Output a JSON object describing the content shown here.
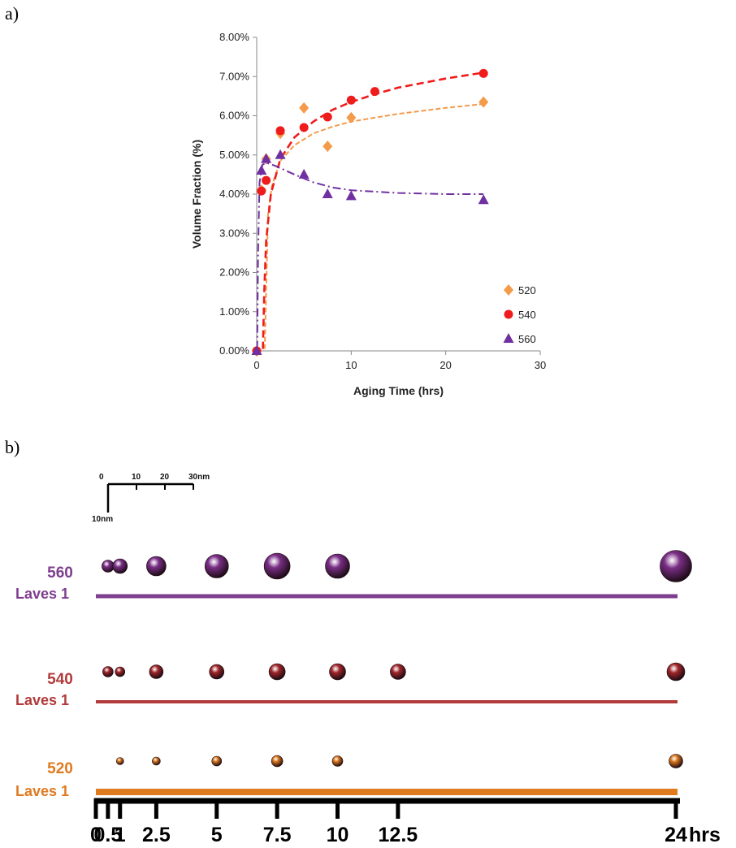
{
  "panels": {
    "a_label": "a)",
    "b_label": "b)"
  },
  "chart_data": [
    {
      "type": "scatter",
      "title": "",
      "xlabel": "Aging Time (hrs)",
      "ylabel": "Volume Fraction (%)",
      "xlim": [
        0,
        30
      ],
      "ylim": [
        0,
        8
      ],
      "xticks": [
        "0",
        "10",
        "20",
        "30"
      ],
      "yticks": [
        "0.00%",
        "1.00%",
        "2.00%",
        "3.00%",
        "4.00%",
        "5.00%",
        "6.00%",
        "7.00%",
        "8.00%"
      ],
      "grid": false,
      "legend_position": "lower-right",
      "series": [
        {
          "name": "520",
          "color": "#F39B4A",
          "marker": "diamond",
          "x": [
            0,
            0.5,
            1,
            2.5,
            5,
            7.5,
            10,
            24
          ],
          "y": [
            0,
            4.1,
            4.9,
            5.55,
            6.2,
            5.22,
            5.95,
            6.35
          ],
          "trend": [
            [
              0.85,
              0.05
            ],
            [
              1.2,
              3.5
            ],
            [
              1.6,
              4.2
            ],
            [
              2.5,
              4.85
            ],
            [
              4,
              5.25
            ],
            [
              6,
              5.55
            ],
            [
              8,
              5.72
            ],
            [
              10,
              5.85
            ],
            [
              15,
              6.05
            ],
            [
              20,
              6.2
            ],
            [
              24,
              6.3
            ]
          ]
        },
        {
          "name": "540",
          "color": "#EE1C1C",
          "marker": "circle",
          "x": [
            0,
            0.5,
            1,
            2.5,
            5,
            7.5,
            10,
            12.5,
            24
          ],
          "y": [
            0,
            4.08,
            4.35,
            5.62,
            5.7,
            5.97,
            6.4,
            6.62,
            7.08
          ],
          "trend": [
            [
              0.65,
              0.05
            ],
            [
              0.8,
              1.5
            ],
            [
              1,
              2.8
            ],
            [
              1.5,
              4.0
            ],
            [
              2.5,
              4.9
            ],
            [
              4,
              5.45
            ],
            [
              6,
              5.85
            ],
            [
              8,
              6.15
            ],
            [
              10,
              6.35
            ],
            [
              12.5,
              6.55
            ],
            [
              15,
              6.72
            ],
            [
              20,
              6.95
            ],
            [
              24,
              7.1
            ]
          ]
        },
        {
          "name": "560",
          "color": "#7030A0",
          "marker": "triangle",
          "x": [
            0,
            0.5,
            1,
            2.5,
            5,
            7.5,
            10,
            24
          ],
          "y": [
            0,
            4.6,
            4.9,
            5.0,
            4.5,
            4.0,
            3.95,
            3.85
          ],
          "trend": [
            [
              0.05,
              0.05
            ],
            [
              0.15,
              2.5
            ],
            [
              0.3,
              4.3
            ],
            [
              0.6,
              4.75
            ],
            [
              1,
              4.8
            ],
            [
              2,
              4.72
            ],
            [
              4,
              4.5
            ],
            [
              6,
              4.3
            ],
            [
              8,
              4.17
            ],
            [
              10,
              4.1
            ],
            [
              15,
              4.03
            ],
            [
              20,
              4.0
            ],
            [
              24,
              4.0
            ]
          ]
        }
      ]
    },
    {
      "type": "scatter",
      "title": "",
      "scale_bar": {
        "ticks": [
          "0",
          "10",
          "20",
          "30nm"
        ],
        "vertical_label": "10nm"
      },
      "time_ticks": [
        {
          "t": 0,
          "label": "0"
        },
        {
          "t": 0.5,
          "label": "0.5"
        },
        {
          "t": 1,
          "label": "1"
        },
        {
          "t": 2.5,
          "label": "2.5"
        },
        {
          "t": 5,
          "label": "5"
        },
        {
          "t": 7.5,
          "label": "7.5"
        },
        {
          "t": 10,
          "label": "10"
        },
        {
          "t": 12.5,
          "label": "12.5"
        },
        {
          "t": 24,
          "label": "24"
        }
      ],
      "time_unit": "hrs",
      "rows": [
        {
          "temp": "560",
          "phase": "Laves 1",
          "color": "#7E3E8E",
          "sphere": "#7A2E86",
          "particles": [
            {
              "t": 0.5,
              "d": 7.5
            },
            {
              "t": 1,
              "d": 9
            },
            {
              "t": 2.5,
              "d": 12
            },
            {
              "t": 5,
              "d": 14.5
            },
            {
              "t": 7.5,
              "d": 16
            },
            {
              "t": 10,
              "d": 15
            },
            {
              "t": 24,
              "d": 19.5
            }
          ]
        },
        {
          "temp": "540",
          "phase": "Laves 1",
          "color": "#B23A3A",
          "sphere": "#A0262A",
          "particles": [
            {
              "t": 0.5,
              "d": 6.5
            },
            {
              "t": 1,
              "d": 6
            },
            {
              "t": 2.5,
              "d": 8.5
            },
            {
              "t": 5,
              "d": 9
            },
            {
              "t": 7.5,
              "d": 10
            },
            {
              "t": 10,
              "d": 10
            },
            {
              "t": 12.5,
              "d": 9.5
            },
            {
              "t": 24,
              "d": 11
            }
          ]
        },
        {
          "temp": "520",
          "phase": "Laves 1",
          "color": "#E07A1F",
          "sphere": "#D9741A",
          "particles": [
            {
              "t": 1,
              "d": 4.5
            },
            {
              "t": 2.5,
              "d": 5
            },
            {
              "t": 5,
              "d": 6
            },
            {
              "t": 7.5,
              "d": 7
            },
            {
              "t": 10,
              "d": 6.5
            },
            {
              "t": 24,
              "d": 8.5
            }
          ]
        }
      ]
    }
  ]
}
